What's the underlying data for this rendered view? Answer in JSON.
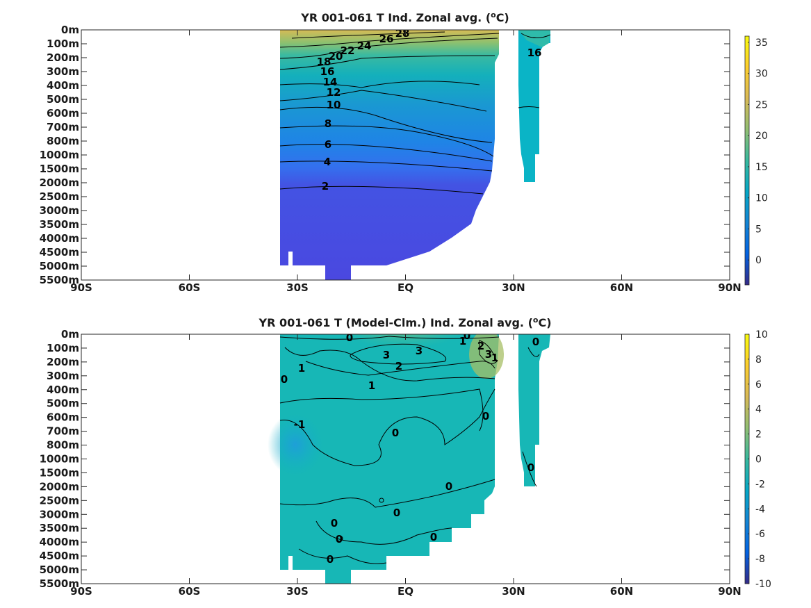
{
  "chart_data": [
    {
      "type": "heatmap",
      "title": "YR 001-061 T Ind. Zonal avg. (°C)",
      "title_main": "YR 001-061 T Ind. Zonal avg. (",
      "title_unit_sup": "o",
      "title_unit_tail": "C)",
      "xlabel": "",
      "ylabel": "",
      "x_ticks": [
        "90S",
        "60S",
        "30S",
        "EQ",
        "30N",
        "60N",
        "90N"
      ],
      "y_ticks": [
        "0m",
        "100m",
        "200m",
        "300m",
        "400m",
        "500m",
        "600m",
        "700m",
        "800m",
        "1000m",
        "1500m",
        "2000m",
        "2500m",
        "3000m",
        "3500m",
        "4000m",
        "4500m",
        "5000m",
        "5500m"
      ],
      "colorbar": {
        "range": [
          -4,
          36
        ],
        "ticks": [
          "35",
          "30",
          "25",
          "20",
          "15",
          "10",
          "5",
          "0"
        ]
      },
      "contour_labels": [
        "28",
        "26",
        "24",
        "22",
        "20",
        "18",
        "16",
        "14",
        "12",
        "10",
        "8",
        "6",
        "4",
        "2",
        "16"
      ],
      "colormap": "parula"
    },
    {
      "type": "heatmap",
      "title": "YR 001-061 T (Model-Clm.) Ind. Zonal avg. (°C)",
      "title_main": "YR 001-061 T (Model-Clm.) Ind. Zonal avg. (",
      "title_unit_sup": "o",
      "title_unit_tail": "C)",
      "xlabel": "",
      "ylabel": "",
      "x_ticks": [
        "90S",
        "60S",
        "30S",
        "EQ",
        "30N",
        "60N",
        "90N"
      ],
      "y_ticks": [
        "0m",
        "100m",
        "200m",
        "300m",
        "400m",
        "500m",
        "600m",
        "700m",
        "800m",
        "1000m",
        "1500m",
        "2000m",
        "2500m",
        "3000m",
        "3500m",
        "4000m",
        "4500m",
        "5000m",
        "5500m"
      ],
      "colorbar": {
        "range": [
          -10,
          10
        ],
        "ticks": [
          "10",
          "8",
          "6",
          "4",
          "2",
          "0",
          "-2",
          "-4",
          "-6",
          "-8",
          "-10"
        ]
      },
      "contour_labels": [
        "0",
        "1",
        "1",
        "3",
        "3",
        "2",
        "1",
        "2",
        "3",
        "0",
        "0",
        "1",
        "-1",
        "0",
        "0",
        "0",
        "0",
        "0",
        "0",
        "0",
        "0",
        "0",
        "0"
      ],
      "colormap": "parula"
    }
  ],
  "colors": {
    "parula_stops": [
      "#352a87",
      "#0363e1",
      "#1485d4",
      "#06a7c6",
      "#38b99e",
      "#92bf73",
      "#d9ba56",
      "#fcce2e",
      "#f9fb0e"
    ]
  }
}
